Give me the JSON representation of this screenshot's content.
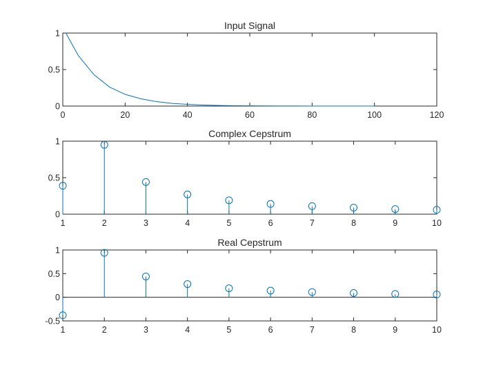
{
  "colors": {
    "series": "#0072BD",
    "axis": "#262626",
    "background": "#ffffff"
  },
  "chart_data": [
    {
      "type": "line",
      "title": "Input Signal",
      "xlabel": "",
      "ylabel": "",
      "xlim": [
        0,
        120
      ],
      "ylim": [
        0,
        1
      ],
      "xticks": [
        0,
        20,
        40,
        60,
        80,
        100,
        120
      ],
      "yticks": [
        0,
        0.5,
        1
      ],
      "xtick_labels": [
        "0",
        "20",
        "40",
        "60",
        "80",
        "100",
        "120"
      ],
      "ytick_labels": [
        "0",
        "0.5",
        "1"
      ],
      "grid": false,
      "series": [
        {
          "x": [
            1,
            5,
            10,
            15,
            20,
            25,
            30,
            35,
            40,
            45,
            50,
            55,
            60,
            65,
            70,
            75,
            80,
            85,
            90,
            95,
            100
          ],
          "y": [
            1.0,
            0.69,
            0.43,
            0.26,
            0.16,
            0.1,
            0.061,
            0.037,
            0.023,
            0.014,
            0.0085,
            0.0052,
            0.0032,
            0.0019,
            0.0012,
            0.0007,
            0.0004,
            0.0003,
            0.0002,
            0.0001,
            0.0001
          ]
        }
      ]
    },
    {
      "type": "stem",
      "title": "Complex Cepstrum",
      "xlabel": "",
      "ylabel": "",
      "xlim": [
        1,
        10
      ],
      "ylim": [
        0,
        1
      ],
      "xticks": [
        1,
        2,
        3,
        4,
        5,
        6,
        7,
        8,
        9,
        10
      ],
      "yticks": [
        0,
        0.5,
        1
      ],
      "xtick_labels": [
        "1",
        "2",
        "3",
        "4",
        "5",
        "6",
        "7",
        "8",
        "9",
        "10"
      ],
      "ytick_labels": [
        "0",
        "0.5",
        "1"
      ],
      "grid": false,
      "series": [
        {
          "x": [
            1,
            2,
            3,
            4,
            5,
            6,
            7,
            8,
            9,
            10
          ],
          "y": [
            0.39,
            0.95,
            0.44,
            0.27,
            0.19,
            0.14,
            0.11,
            0.09,
            0.07,
            0.06
          ]
        }
      ]
    },
    {
      "type": "stem",
      "title": "Real Cepstrum",
      "xlabel": "",
      "ylabel": "",
      "xlim": [
        1,
        10
      ],
      "ylim": [
        -0.5,
        1
      ],
      "xticks": [
        1,
        2,
        3,
        4,
        5,
        6,
        7,
        8,
        9,
        10
      ],
      "yticks": [
        -0.5,
        0,
        0.5,
        1
      ],
      "xtick_labels": [
        "1",
        "2",
        "3",
        "4",
        "5",
        "6",
        "7",
        "8",
        "9",
        "10"
      ],
      "ytick_labels": [
        "-0.5",
        "0",
        "0.5",
        "1"
      ],
      "grid": false,
      "zero_line": true,
      "series": [
        {
          "x": [
            1,
            2,
            3,
            4,
            5,
            6,
            7,
            8,
            9,
            10
          ],
          "y": [
            -0.38,
            0.94,
            0.44,
            0.28,
            0.19,
            0.14,
            0.11,
            0.09,
            0.07,
            0.06
          ]
        }
      ]
    }
  ]
}
